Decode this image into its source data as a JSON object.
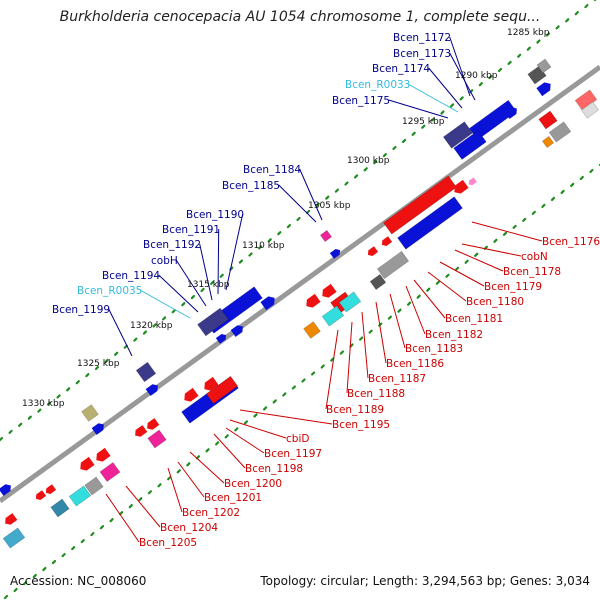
{
  "title": "Burkholderia cenocepacia AU 1054 chromosome 1, complete sequ...",
  "footer": {
    "accession": "Accession: NC_008060",
    "summary": "Topology: circular; Length: 3,294,563 bp; Genes: 3,034"
  },
  "colors": {
    "forward_labels": "#00008b",
    "reverse_labels": "#cc0000",
    "rna_labels": "#33bbdd",
    "tick_dots": "#1e8c1e",
    "backbone": "#999999"
  },
  "ticks": [
    "1285 kbp",
    "1290 kbp",
    "1295 kbp",
    "1300 kbp",
    "1305 kbp",
    "1310 kbp",
    "1315 kbp",
    "1320 kbp",
    "1325 kbp",
    "1330 kbp"
  ],
  "labels_forward": [
    "Bcen_1172",
    "Bcen_1173",
    "Bcen_1174",
    "Bcen_R0033",
    "Bcen_1175",
    "Bcen_1184",
    "Bcen_1185",
    "Bcen_1190",
    "Bcen_1191",
    "Bcen_1192",
    "cobH",
    "Bcen_1194",
    "Bcen_R0035",
    "Bcen_1199"
  ],
  "labels_reverse": [
    "Bcen_1176",
    "cobN",
    "Bcen_1178",
    "Bcen_1179",
    "Bcen_1180",
    "Bcen_1181",
    "Bcen_1182",
    "Bcen_1183",
    "Bcen_1186",
    "Bcen_1187",
    "Bcen_1188",
    "Bcen_1189",
    "Bcen_1195",
    "cbiD",
    "Bcen_1197",
    "Bcen_1198",
    "Bcen_1200",
    "Bcen_1201",
    "Bcen_1202",
    "Bcen_1204",
    "Bcen_1205"
  ]
}
